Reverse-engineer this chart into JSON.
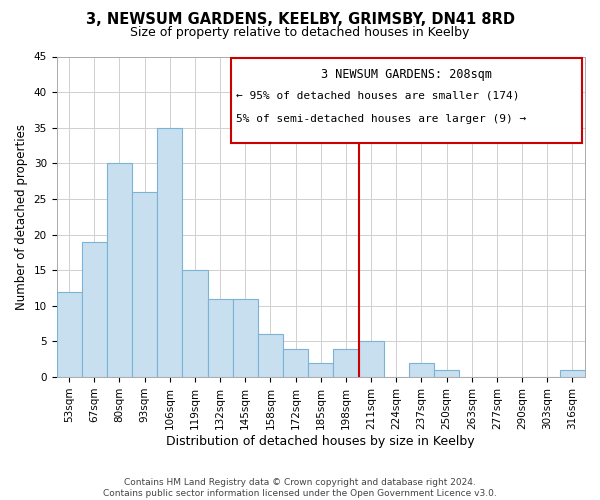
{
  "title": "3, NEWSUM GARDENS, KEELBY, GRIMSBY, DN41 8RD",
  "subtitle": "Size of property relative to detached houses in Keelby",
  "xlabel": "Distribution of detached houses by size in Keelby",
  "ylabel": "Number of detached properties",
  "bin_labels": [
    "53sqm",
    "67sqm",
    "80sqm",
    "93sqm",
    "106sqm",
    "119sqm",
    "132sqm",
    "145sqm",
    "158sqm",
    "172sqm",
    "185sqm",
    "198sqm",
    "211sqm",
    "224sqm",
    "237sqm",
    "250sqm",
    "263sqm",
    "277sqm",
    "290sqm",
    "303sqm",
    "316sqm"
  ],
  "bar_heights": [
    12,
    19,
    30,
    26,
    35,
    15,
    11,
    11,
    6,
    4,
    2,
    4,
    5,
    0,
    2,
    1,
    0,
    0,
    0,
    0,
    1
  ],
  "bar_color": "#c8dff0",
  "bar_edge_color": "#7ab3d4",
  "vline_x": 12,
  "vline_color": "#cc0000",
  "ylim": [
    0,
    45
  ],
  "yticks": [
    0,
    5,
    10,
    15,
    20,
    25,
    30,
    35,
    40,
    45
  ],
  "annotation_title": "3 NEWSUM GARDENS: 208sqm",
  "annotation_line1": "← 95% of detached houses are smaller (174)",
  "annotation_line2": "5% of semi-detached houses are larger (9) →",
  "ann_box_color": "#cc0000",
  "footer_line1": "Contains HM Land Registry data © Crown copyright and database right 2024.",
  "footer_line2": "Contains public sector information licensed under the Open Government Licence v3.0.",
  "background_color": "#ffffff",
  "grid_color": "#d0d0d0",
  "title_fontsize": 10.5,
  "subtitle_fontsize": 9,
  "ylabel_fontsize": 8.5,
  "xlabel_fontsize": 9,
  "tick_fontsize": 7.5,
  "ann_fontsize": 8.5,
  "footer_fontsize": 6.5
}
